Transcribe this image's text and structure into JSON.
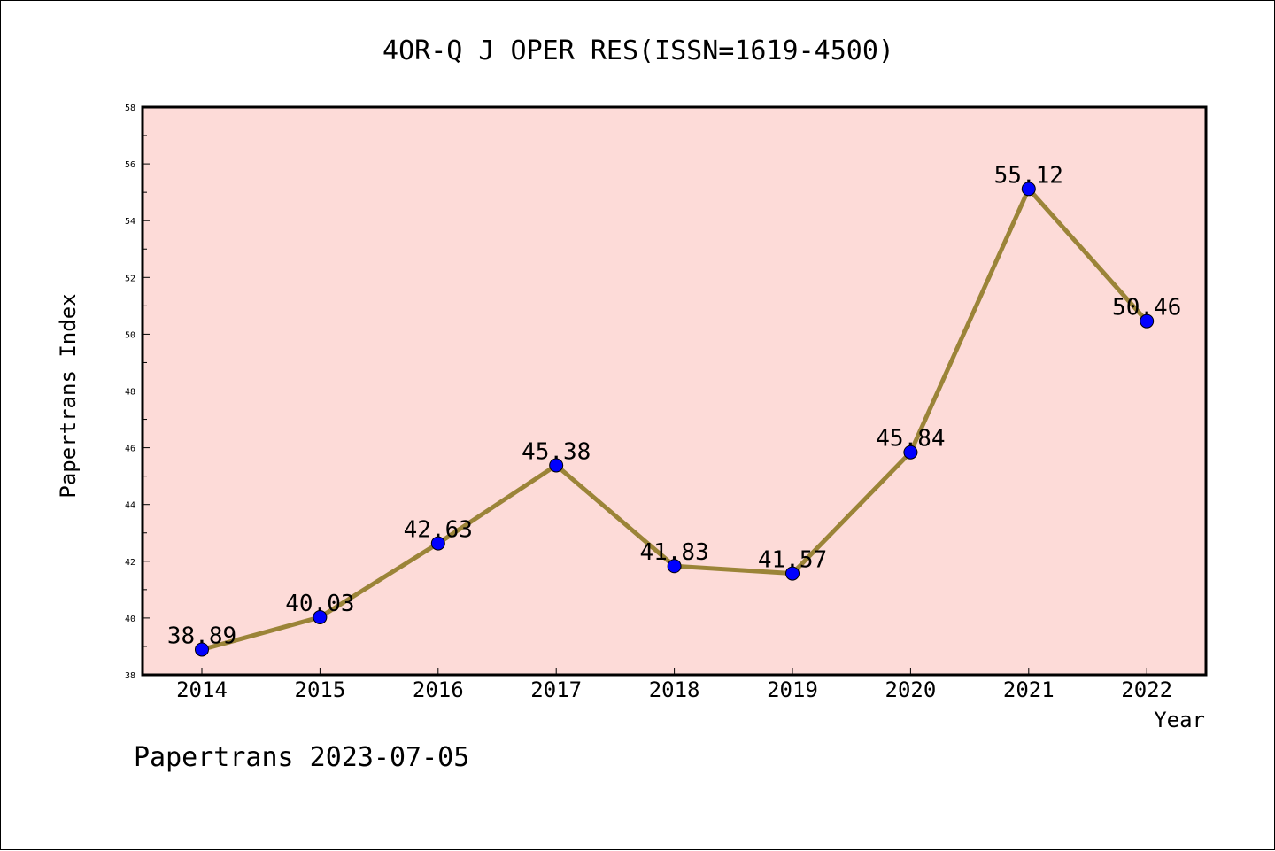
{
  "chart_data": {
    "type": "line",
    "title": "4OR-Q J OPER RES(ISSN=1619-4500)",
    "xlabel": "Year",
    "ylabel": "Papertrans Index",
    "categories": [
      "2014",
      "2015",
      "2016",
      "2017",
      "2018",
      "2019",
      "2020",
      "2021",
      "2022"
    ],
    "series": [
      {
        "values": [
          38.89,
          40.03,
          42.63,
          45.38,
          41.83,
          41.57,
          45.84,
          55.12,
          50.46
        ],
        "labels": [
          "38.89",
          "40.03",
          "42.63",
          "45.38",
          "41.83",
          "41.57",
          "45.84",
          "55.12",
          "50.46"
        ]
      }
    ],
    "ylim": [
      38,
      58
    ],
    "yticks": [
      "38",
      "40",
      "42",
      "44",
      "46",
      "48",
      "50",
      "52",
      "54",
      "56",
      "58"
    ],
    "grid": false,
    "colors": {
      "plot_background": "#fddbd8",
      "line": "#9b8438",
      "marker": "#0000ff"
    }
  },
  "footer": "Papertrans 2023-07-05"
}
